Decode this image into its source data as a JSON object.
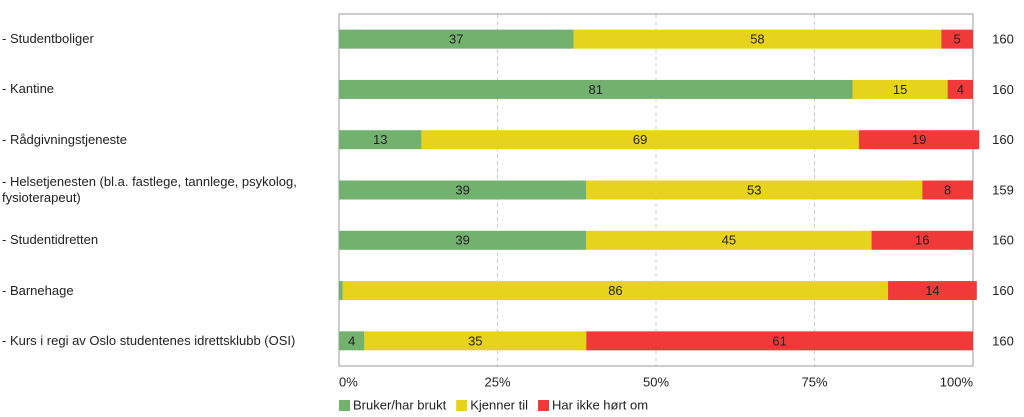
{
  "chart_data": {
    "type": "stacked-bar-horizontal",
    "categories": [
      "- Studentboliger",
      "- Kantine",
      "- Rådgivningstjeneste",
      "- Helsetjenesten (bl.a. fastlege, tannlege, psykolog, fysioterapeut)",
      "- Studentidretten",
      "- Barnehage",
      "- Kurs i regi av Oslo studentenes idrettsklubb (OSI)"
    ],
    "series": [
      {
        "name": "Bruker/har brukt",
        "color": "#72b26e",
        "values": [
          37,
          81,
          13,
          39,
          39,
          0.6,
          4
        ]
      },
      {
        "name": "Kjenner til",
        "color": "#e8d31c",
        "values": [
          58,
          15,
          69,
          53,
          45,
          86,
          35
        ]
      },
      {
        "name": "Har ikke hørt om",
        "color": "#f03a3a",
        "values": [
          5,
          4,
          19,
          8,
          16,
          14,
          61
        ]
      }
    ],
    "n": [
      160,
      160,
      160,
      159,
      160,
      160,
      160
    ],
    "xlim": [
      0,
      100
    ],
    "xticks": [
      {
        "value": 0,
        "label": "0%"
      },
      {
        "value": 25,
        "label": "25%"
      },
      {
        "value": 50,
        "label": "50%"
      },
      {
        "value": 75,
        "label": "75%"
      },
      {
        "value": 100,
        "label": "100%"
      }
    ],
    "grid": true
  }
}
